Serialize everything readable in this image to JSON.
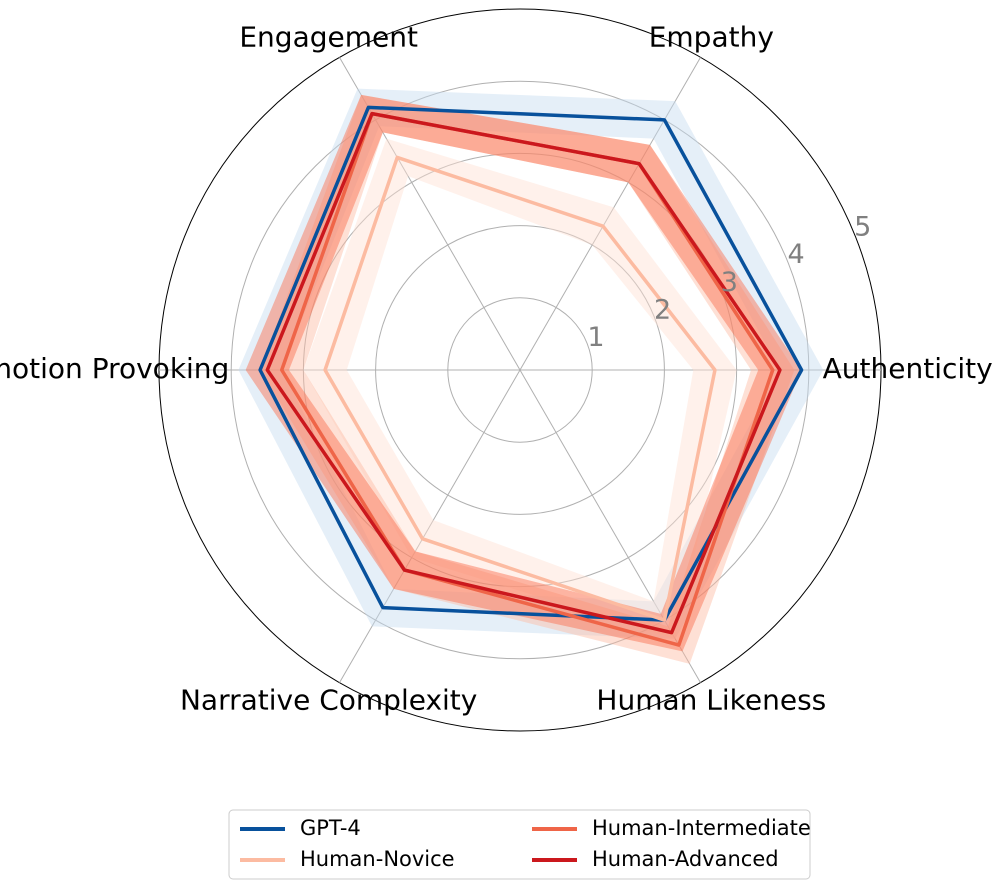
{
  "chart_data": {
    "type": "radar",
    "axes": [
      "Authenticity",
      "Empathy",
      "Engagement",
      "Emotion Provoking",
      "Narrative Complexity",
      "Human Likeness"
    ],
    "rlim": [
      0,
      5
    ],
    "rticks": [
      "1",
      "2",
      "3",
      "4",
      "5"
    ],
    "grid": true,
    "legend_position": "bottom",
    "series": [
      {
        "name": "GPT-4",
        "color": "#08519c",
        "values": [
          3.9,
          4.0,
          4.2,
          3.6,
          3.8,
          4.0
        ],
        "band": 0.3,
        "band_color": "#c6dbef"
      },
      {
        "name": "Human-Novice",
        "color": "#fcbba1",
        "values": [
          2.7,
          2.3,
          3.4,
          2.7,
          2.7,
          4.0
        ],
        "band": 0.3,
        "band_color": "#fee0d2"
      },
      {
        "name": "Human-Intermediate",
        "color": "#ef6548",
        "values": [
          3.5,
          3.3,
          4.1,
          3.3,
          3.2,
          4.4
        ],
        "band": 0.3,
        "band_color": "#fcbba1"
      },
      {
        "name": "Human-Advanced",
        "color": "#cb181d",
        "values": [
          3.6,
          3.3,
          4.1,
          3.5,
          3.2,
          4.2
        ],
        "band": 0.3,
        "band_color": "#fb6a4a"
      }
    ]
  }
}
